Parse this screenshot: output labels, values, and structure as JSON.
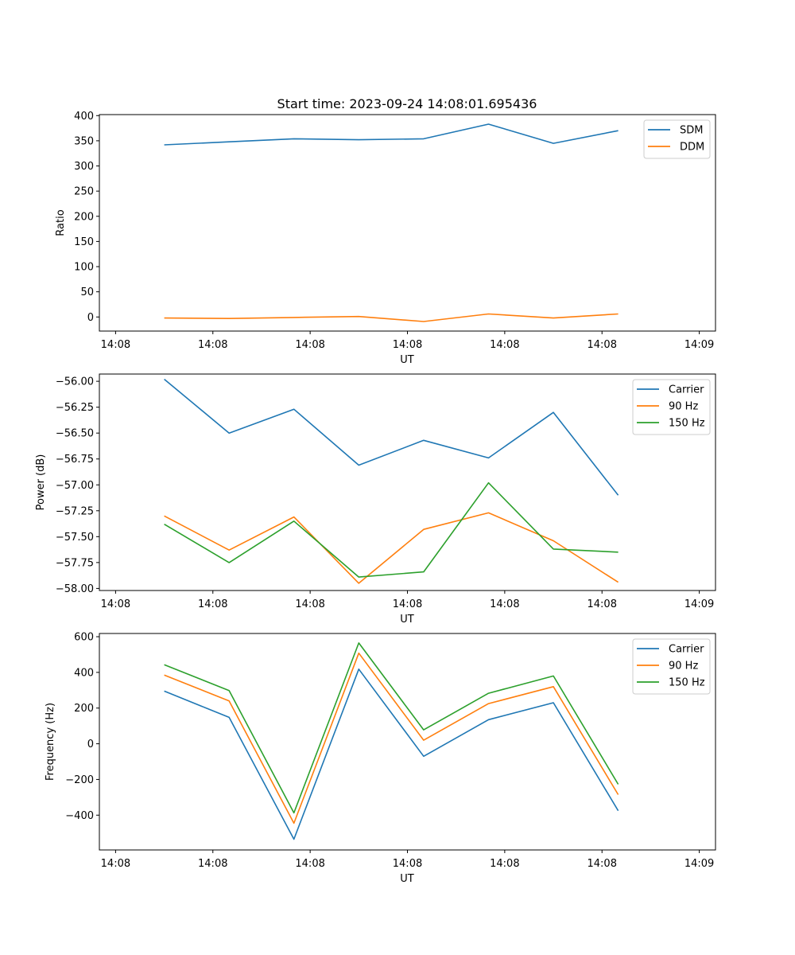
{
  "colors": {
    "blue": "#1f77b4",
    "orange": "#ff7f0e",
    "green": "#2ca02c"
  },
  "chart_data": [
    {
      "type": "line",
      "title": "Start time: 2023-09-24 14:08:01.695436",
      "xlabel": "UT",
      "ylabel": "Ratio",
      "x": [
        1,
        2,
        3,
        4,
        5,
        6,
        7,
        8
      ],
      "xlim": [
        0,
        9.5
      ],
      "xticks": [
        0.25,
        1.75,
        3.25,
        4.75,
        6.25,
        7.75,
        9.25
      ],
      "xtick_labels": [
        "14:08",
        "14:08",
        "14:08",
        "14:08",
        "14:08",
        "14:08",
        "14:09"
      ],
      "ylim": [
        -28,
        402
      ],
      "yticks": [
        0,
        50,
        100,
        150,
        200,
        250,
        300,
        350,
        400
      ],
      "ytick_labels": [
        "0",
        "50",
        "100",
        "150",
        "200",
        "250",
        "300",
        "350",
        "400"
      ],
      "legend": "top-right",
      "series": [
        {
          "name": "SDM",
          "color": "#1f77b4",
          "values": [
            342,
            348,
            354,
            352,
            354,
            383,
            345,
            370
          ]
        },
        {
          "name": "DDM",
          "color": "#ff7f0e",
          "values": [
            -2,
            -3,
            -1,
            1,
            -9,
            6,
            -2,
            6
          ]
        }
      ]
    },
    {
      "type": "line",
      "title": "",
      "xlabel": "UT",
      "ylabel": "Power (dB)",
      "x": [
        1,
        2,
        3,
        4,
        5,
        6,
        7,
        8
      ],
      "xlim": [
        0,
        9.5
      ],
      "xticks": [
        0.25,
        1.75,
        3.25,
        4.75,
        6.25,
        7.75,
        9.25
      ],
      "xtick_labels": [
        "14:08",
        "14:08",
        "14:08",
        "14:08",
        "14:08",
        "14:08",
        "14:09"
      ],
      "ylim": [
        -58.02,
        -55.93
      ],
      "yticks": [
        -56.0,
        -56.25,
        -56.5,
        -56.75,
        -57.0,
        -57.25,
        -57.5,
        -57.75,
        -58.0
      ],
      "ytick_labels": [
        "−56.00",
        "−56.25",
        "−56.50",
        "−56.75",
        "−57.00",
        "−57.25",
        "−57.50",
        "−57.75",
        "−58.00"
      ],
      "legend": "top-right",
      "series": [
        {
          "name": "Carrier",
          "color": "#1f77b4",
          "values": [
            -55.98,
            -56.5,
            -56.27,
            -56.81,
            -56.57,
            -56.74,
            -56.3,
            -57.1
          ]
        },
        {
          "name": "90 Hz",
          "color": "#ff7f0e",
          "values": [
            -57.3,
            -57.63,
            -57.31,
            -57.95,
            -57.43,
            -57.27,
            -57.54,
            -57.94
          ]
        },
        {
          "name": "150 Hz",
          "color": "#2ca02c",
          "values": [
            -57.38,
            -57.75,
            -57.35,
            -57.89,
            -57.84,
            -56.98,
            -57.62,
            -57.65
          ]
        }
      ]
    },
    {
      "type": "line",
      "title": "",
      "xlabel": "UT",
      "ylabel": "Frequency (Hz)",
      "x": [
        1,
        2,
        3,
        4,
        5,
        6,
        7,
        8
      ],
      "xlim": [
        0,
        9.5
      ],
      "xticks": [
        0.25,
        1.75,
        3.25,
        4.75,
        6.25,
        7.75,
        9.25
      ],
      "xtick_labels": [
        "14:08",
        "14:08",
        "14:08",
        "14:08",
        "14:08",
        "14:08",
        "14:09"
      ],
      "ylim": [
        -595,
        618
      ],
      "yticks": [
        600,
        400,
        200,
        0,
        -200,
        -400
      ],
      "ytick_labels": [
        "600",
        "400",
        "200",
        "0",
        "−200",
        "−400"
      ],
      "legend": "top-right",
      "series": [
        {
          "name": "Carrier",
          "color": "#1f77b4",
          "values": [
            295,
            148,
            -535,
            418,
            -70,
            135,
            230,
            -375
          ]
        },
        {
          "name": "90 Hz",
          "color": "#ff7f0e",
          "values": [
            385,
            240,
            -445,
            508,
            20,
            225,
            320,
            -285
          ]
        },
        {
          "name": "150 Hz",
          "color": "#2ca02c",
          "values": [
            443,
            298,
            -387,
            565,
            78,
            283,
            380,
            -227
          ]
        }
      ]
    }
  ]
}
